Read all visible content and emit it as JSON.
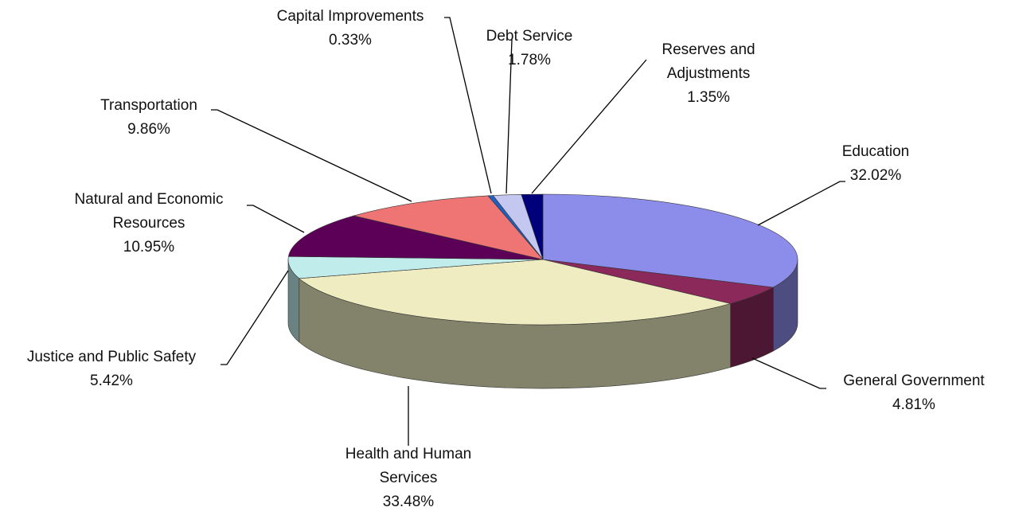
{
  "chart_data": {
    "type": "pie",
    "categories": [
      "Education",
      "General Government",
      "Health and Human Services",
      "Justice and Public Safety",
      "Natural and Economic Resources",
      "Transportation",
      "Capital Improvements",
      "Debt Service",
      "Reserves and Adjustments"
    ],
    "values": [
      32.02,
      4.81,
      33.48,
      5.42,
      10.95,
      9.86,
      0.33,
      1.78,
      1.35
    ],
    "value_labels": [
      "32.02%",
      "4.81%",
      "33.48%",
      "5.42%",
      "10.95%",
      "9.86%",
      "0.33%",
      "1.78%",
      "1.35%"
    ],
    "colors": [
      "#8c8ceb",
      "#8b2a5a",
      "#eeecc0",
      "#c0ecec",
      "#5c0057",
      "#ef7474",
      "#1f5fbf",
      "#c4c8f0",
      "#00007a"
    ]
  }
}
